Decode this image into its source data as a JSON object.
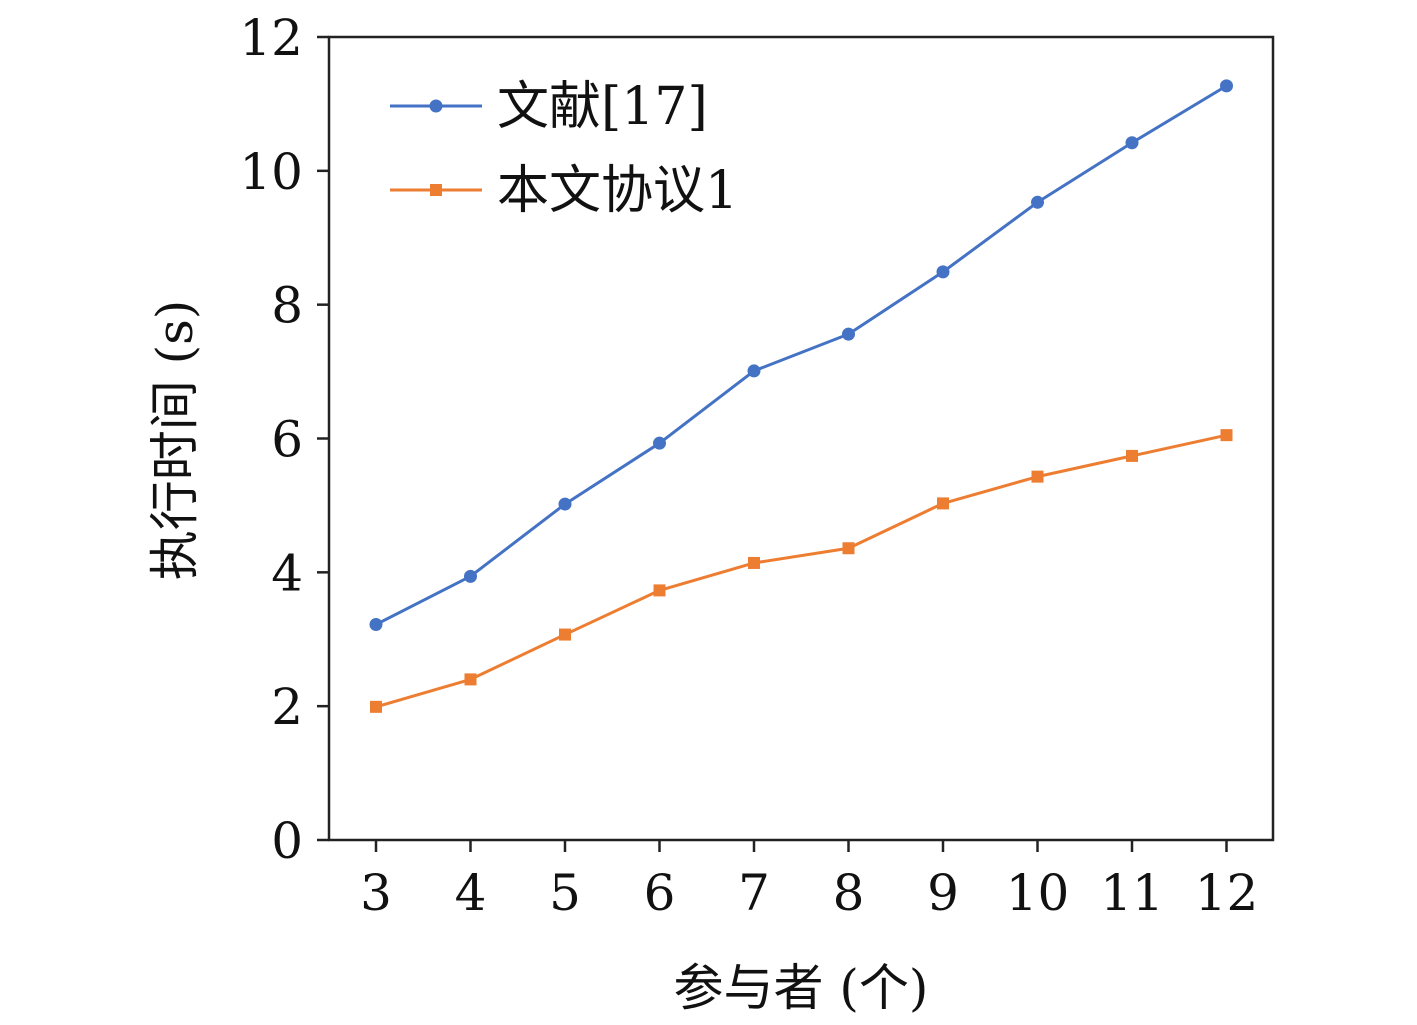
{
  "chart_data": {
    "type": "line",
    "xlabel": "参与者 (个)",
    "ylabel": "执行时间 (s)",
    "x": [
      3,
      4,
      5,
      6,
      7,
      8,
      9,
      10,
      11,
      12
    ],
    "ylim": [
      0,
      12
    ],
    "yticks": [
      0,
      2,
      4,
      6,
      8,
      10,
      12
    ],
    "grid": false,
    "legend": "top-left",
    "series": [
      {
        "name": "文献[17]",
        "color": "#4472C4",
        "marker": "circle",
        "values": [
          3.22,
          3.94,
          5.02,
          5.93,
          7.01,
          7.56,
          8.49,
          9.53,
          10.42,
          11.27
        ]
      },
      {
        "name": "本文协议1",
        "color": "#ED7D31",
        "marker": "square",
        "values": [
          1.99,
          2.4,
          3.07,
          3.73,
          4.14,
          4.36,
          5.03,
          5.43,
          5.74,
          6.05
        ]
      }
    ]
  }
}
